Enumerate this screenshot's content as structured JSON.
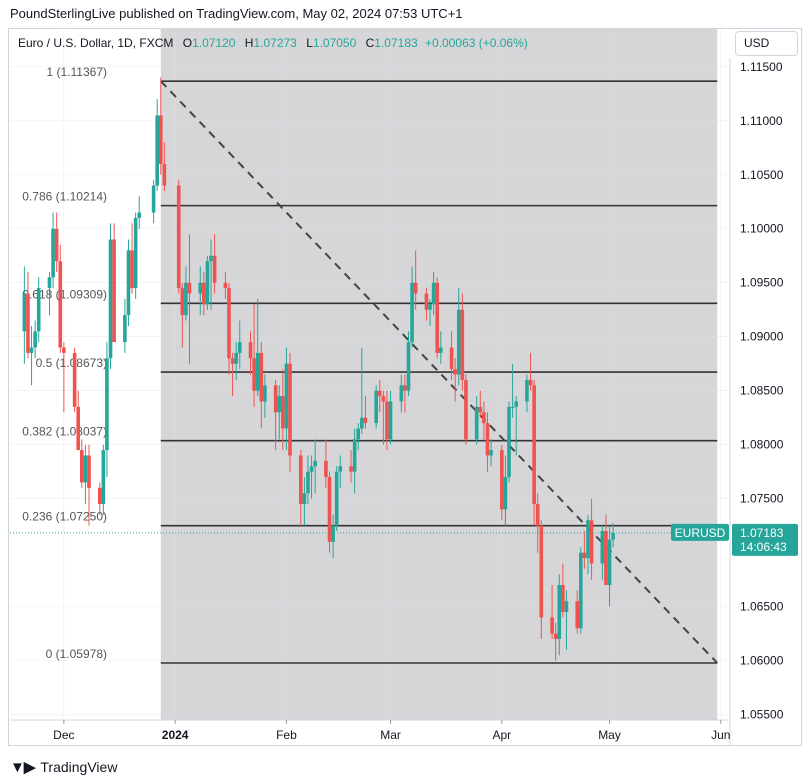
{
  "header": {
    "published_text": "PoundSterlingLive published on TradingView.com, May 02, 2024 07:53 UTC+1"
  },
  "legend": {
    "symbol": "Euro / U.S. Dollar, 1D, FXCM",
    "o_label": "O",
    "o_value": "1.07120",
    "h_label": "H",
    "h_value": "1.07273",
    "l_label": "L",
    "l_value": "1.07050",
    "c_label": "C",
    "c_value": "1.07183",
    "change": "+0.00063 (+0.06%)"
  },
  "currency_selector": "USD",
  "price_tag": {
    "symbol": "EURUSD",
    "price": "1.07183",
    "countdown": "14:06:43"
  },
  "footer": {
    "brand": "TradingView"
  },
  "colors": {
    "up": "#26a69a",
    "down": "#ef5350",
    "shade": "#d6d6d8",
    "level_line": "#333333",
    "trend_line": "#444444"
  },
  "chart_data": {
    "type": "candlestick",
    "y_axis": {
      "min": 1.0545,
      "max": 1.1185,
      "ticks": [
        "1.11500",
        "1.11000",
        "1.10500",
        "1.10000",
        "1.09500",
        "1.09000",
        "1.08500",
        "1.08000",
        "1.07500",
        "1.06500",
        "1.06000",
        "1.05500"
      ]
    },
    "x_axis": {
      "labels": [
        {
          "text": "Dec",
          "date": "2023-12-01",
          "bold": false
        },
        {
          "text": "2024",
          "date": "2024-01-01",
          "bold": true
        },
        {
          "text": "Feb",
          "date": "2024-02-01",
          "bold": false
        },
        {
          "text": "Mar",
          "date": "2024-03-01",
          "bold": false
        },
        {
          "text": "Apr",
          "date": "2024-04-01",
          "bold": false
        },
        {
          "text": "May",
          "date": "2024-05-01",
          "bold": false
        },
        {
          "text": "Jun",
          "date": "2024-06-01",
          "bold": false
        }
      ]
    },
    "fib_levels": [
      {
        "label": "1 (1.11367)",
        "value": 1.11367
      },
      {
        "label": "0.786 (1.10214)",
        "value": 1.10214
      },
      {
        "label": "0.618 (1.09309)",
        "value": 1.09309
      },
      {
        "label": "0.5 (1.08673)",
        "value": 1.08673
      },
      {
        "label": "0.382 (1.08037)",
        "value": 1.08037
      },
      {
        "label": "0.236 (1.07250)",
        "value": 1.0725
      },
      {
        "label": "0 (1.05978)",
        "value": 1.05978
      }
    ],
    "fib_range": {
      "start": "2023-12-28",
      "end": "2024-05-31"
    },
    "trend_line": {
      "start": {
        "date": "2023-12-28",
        "value": 1.11367
      },
      "end": {
        "date": "2024-05-31",
        "value": 1.05978
      }
    },
    "last_price": 1.07183,
    "candles": [
      [
        "2023-11-20",
        1.0905,
        1.0965,
        1.0875,
        1.094
      ],
      [
        "2023-11-21",
        1.094,
        1.096,
        1.088,
        1.0885
      ],
      [
        "2023-11-22",
        1.0885,
        1.091,
        1.0855,
        1.089
      ],
      [
        "2023-11-23",
        1.089,
        1.0915,
        1.088,
        1.0905
      ],
      [
        "2023-11-24",
        1.0905,
        1.0955,
        1.0895,
        1.0945
      ],
      [
        "2023-11-27",
        1.0945,
        1.096,
        1.092,
        1.0955
      ],
      [
        "2023-11-28",
        1.0955,
        1.1015,
        1.0945,
        1.1
      ],
      [
        "2023-11-29",
        1.1,
        1.1015,
        1.096,
        1.097
      ],
      [
        "2023-11-30",
        1.097,
        1.0985,
        1.0885,
        1.089
      ],
      [
        "2023-12-01",
        1.089,
        1.0895,
        1.083,
        1.0885
      ],
      [
        "2023-12-04",
        1.0885,
        1.089,
        1.083,
        1.0835
      ],
      [
        "2023-12-05",
        1.0835,
        1.085,
        1.0795,
        1.0795
      ],
      [
        "2023-12-06",
        1.0795,
        1.0805,
        1.076,
        1.0765
      ],
      [
        "2023-12-07",
        1.0765,
        1.08,
        1.0745,
        1.079
      ],
      [
        "2023-12-08",
        1.079,
        1.08,
        1.0725,
        1.076
      ],
      [
        "2023-12-11",
        1.076,
        1.0765,
        1.0735,
        1.0745
      ],
      [
        "2023-12-12",
        1.0745,
        1.08,
        1.0735,
        1.0795
      ],
      [
        "2023-12-13",
        1.0795,
        1.0895,
        1.077,
        1.088
      ],
      [
        "2023-12-14",
        1.088,
        1.1005,
        1.087,
        1.099
      ],
      [
        "2023-12-15",
        1.099,
        1.1005,
        1.0895,
        1.0895
      ],
      [
        "2023-12-18",
        1.0895,
        1.0935,
        1.0885,
        1.092
      ],
      [
        "2023-12-19",
        1.092,
        1.099,
        1.091,
        1.098
      ],
      [
        "2023-12-20",
        1.098,
        1.1005,
        1.094,
        1.0945
      ],
      [
        "2023-12-21",
        1.0945,
        1.1015,
        1.0935,
        1.101
      ],
      [
        "2023-12-22",
        1.101,
        1.103,
        1.1,
        1.1015
      ],
      [
        "2023-12-26",
        1.1015,
        1.1045,
        1.1005,
        1.104
      ],
      [
        "2023-12-27",
        1.104,
        1.112,
        1.1035,
        1.1105
      ],
      [
        "2023-12-28",
        1.1105,
        1.114,
        1.105,
        1.106
      ],
      [
        "2023-12-29",
        1.106,
        1.108,
        1.1035,
        1.104
      ],
      [
        "2024-01-02",
        1.104,
        1.1045,
        1.094,
        1.0945
      ],
      [
        "2024-01-03",
        1.0945,
        1.095,
        1.089,
        1.092
      ],
      [
        "2024-01-04",
        1.092,
        1.0965,
        1.0915,
        1.095
      ],
      [
        "2024-01-05",
        1.095,
        1.0995,
        1.0875,
        1.094
      ],
      [
        "2024-01-08",
        1.094,
        1.0965,
        1.092,
        1.095
      ],
      [
        "2024-01-09",
        1.095,
        1.096,
        1.092,
        1.093
      ],
      [
        "2024-01-10",
        1.093,
        1.0975,
        1.0925,
        1.097
      ],
      [
        "2024-01-11",
        1.097,
        1.099,
        1.0925,
        1.0975
      ],
      [
        "2024-01-12",
        1.0975,
        1.0995,
        1.094,
        1.095
      ],
      [
        "2024-01-15",
        1.095,
        1.096,
        1.0935,
        1.0945
      ],
      [
        "2024-01-16",
        1.0945,
        1.095,
        1.0865,
        1.088
      ],
      [
        "2024-01-17",
        1.088,
        1.0885,
        1.0845,
        1.0875
      ],
      [
        "2024-01-18",
        1.0875,
        1.0895,
        1.086,
        1.0885
      ],
      [
        "2024-01-19",
        1.0885,
        1.0915,
        1.087,
        1.0895
      ],
      [
        "2024-01-22",
        1.0895,
        1.0905,
        1.0865,
        1.088
      ],
      [
        "2024-01-23",
        1.088,
        1.093,
        1.0835,
        1.085
      ],
      [
        "2024-01-24",
        1.085,
        1.0935,
        1.0845,
        1.0885
      ],
      [
        "2024-01-25",
        1.0885,
        1.0895,
        1.0815,
        1.084
      ],
      [
        "2024-01-26",
        1.084,
        1.0865,
        1.0825,
        1.0855
      ],
      [
        "2024-01-29",
        1.0855,
        1.086,
        1.0795,
        1.083
      ],
      [
        "2024-01-30",
        1.083,
        1.0855,
        1.0805,
        1.0845
      ],
      [
        "2024-01-31",
        1.0845,
        1.087,
        1.0795,
        1.0815
      ],
      [
        "2024-02-01",
        1.0815,
        1.089,
        1.0795,
        1.0875
      ],
      [
        "2024-02-02",
        1.0875,
        1.0885,
        1.0775,
        1.079
      ],
      [
        "2024-02-05",
        1.079,
        1.0795,
        1.0725,
        1.0745
      ],
      [
        "2024-02-06",
        1.0745,
        1.077,
        1.0725,
        1.0755
      ],
      [
        "2024-02-07",
        1.0755,
        1.079,
        1.0745,
        1.0775
      ],
      [
        "2024-02-08",
        1.0775,
        1.079,
        1.075,
        1.078
      ],
      [
        "2024-02-09",
        1.078,
        1.0805,
        1.0755,
        1.0785
      ],
      [
        "2024-02-12",
        1.0785,
        1.0805,
        1.076,
        1.077
      ],
      [
        "2024-02-13",
        1.077,
        1.0775,
        1.07,
        1.071
      ],
      [
        "2024-02-14",
        1.071,
        1.0735,
        1.0695,
        1.0725
      ],
      [
        "2024-02-15",
        1.0725,
        1.078,
        1.072,
        1.0775
      ],
      [
        "2024-02-16",
        1.0775,
        1.079,
        1.076,
        1.078
      ],
      [
        "2024-02-19",
        1.078,
        1.0795,
        1.0765,
        1.0775
      ],
      [
        "2024-02-20",
        1.0775,
        1.0815,
        1.0755,
        1.0805
      ],
      [
        "2024-02-21",
        1.0805,
        1.082,
        1.0795,
        1.0815
      ],
      [
        "2024-02-22",
        1.0815,
        1.089,
        1.081,
        1.0825
      ],
      [
        "2024-02-23",
        1.0825,
        1.0845,
        1.0815,
        1.082
      ],
      [
        "2024-02-26",
        1.082,
        1.0855,
        1.0815,
        1.085
      ],
      [
        "2024-02-27",
        1.085,
        1.086,
        1.083,
        1.0845
      ],
      [
        "2024-02-28",
        1.0845,
        1.085,
        1.08,
        1.084
      ],
      [
        "2024-02-29",
        1.084,
        1.085,
        1.0795,
        1.0805
      ],
      [
        "2024-03-01",
        1.0805,
        1.085,
        1.08,
        1.084
      ],
      [
        "2024-03-04",
        1.084,
        1.0865,
        1.083,
        1.0855
      ],
      [
        "2024-03-05",
        1.0855,
        1.0865,
        1.083,
        1.085
      ],
      [
        "2024-03-06",
        1.085,
        1.0905,
        1.0845,
        1.0895
      ],
      [
        "2024-03-07",
        1.0895,
        1.0965,
        1.089,
        1.095
      ],
      [
        "2024-03-08",
        1.095,
        1.098,
        1.0925,
        1.094
      ],
      [
        "2024-03-11",
        1.094,
        1.0945,
        1.0915,
        1.0925
      ],
      [
        "2024-03-12",
        1.0925,
        1.0935,
        1.091,
        1.093
      ],
      [
        "2024-03-13",
        1.093,
        1.096,
        1.092,
        1.095
      ],
      [
        "2024-03-14",
        1.095,
        1.0955,
        1.088,
        1.0885
      ],
      [
        "2024-03-15",
        1.0885,
        1.0905,
        1.0875,
        1.089
      ],
      [
        "2024-03-18",
        1.089,
        1.0905,
        1.086,
        1.087
      ],
      [
        "2024-03-19",
        1.087,
        1.088,
        1.084,
        1.0865
      ],
      [
        "2024-03-20",
        1.0865,
        1.0945,
        1.0855,
        1.0925
      ],
      [
        "2024-03-21",
        1.0925,
        1.094,
        1.085,
        1.086
      ],
      [
        "2024-03-22",
        1.086,
        1.0865,
        1.08,
        1.0805
      ],
      [
        "2024-03-25",
        1.0805,
        1.0845,
        1.08,
        1.0835
      ],
      [
        "2024-03-26",
        1.0835,
        1.085,
        1.0825,
        1.083
      ],
      [
        "2024-03-27",
        1.083,
        1.084,
        1.0805,
        1.082
      ],
      [
        "2024-03-28",
        1.082,
        1.083,
        1.0775,
        1.079
      ],
      [
        "2024-03-29",
        1.079,
        1.0805,
        1.078,
        1.0795
      ],
      [
        "2024-04-01",
        1.0795,
        1.08,
        1.073,
        1.074
      ],
      [
        "2024-04-02",
        1.074,
        1.079,
        1.0725,
        1.077
      ],
      [
        "2024-04-03",
        1.077,
        1.084,
        1.0765,
        1.0835
      ],
      [
        "2024-04-04",
        1.0835,
        1.0875,
        1.0825,
        1.0835
      ],
      [
        "2024-04-05",
        1.0835,
        1.0845,
        1.079,
        1.084
      ],
      [
        "2024-04-08",
        1.084,
        1.0865,
        1.083,
        1.086
      ],
      [
        "2024-04-09",
        1.086,
        1.0885,
        1.085,
        1.0855
      ],
      [
        "2024-04-10",
        1.0855,
        1.086,
        1.0725,
        1.0745
      ],
      [
        "2024-04-11",
        1.0745,
        1.0755,
        1.07,
        1.0725
      ],
      [
        "2024-04-12",
        1.0725,
        1.073,
        1.062,
        1.064
      ],
      [
        "2024-04-15",
        1.064,
        1.067,
        1.062,
        1.0625
      ],
      [
        "2024-04-16",
        1.0625,
        1.0635,
        1.06,
        1.062
      ],
      [
        "2024-04-17",
        1.062,
        1.068,
        1.0605,
        1.067
      ],
      [
        "2024-04-18",
        1.067,
        1.069,
        1.064,
        1.0645
      ],
      [
        "2024-04-19",
        1.0645,
        1.0665,
        1.061,
        1.0655
      ],
      [
        "2024-04-22",
        1.0655,
        1.0665,
        1.0625,
        1.063
      ],
      [
        "2024-04-23",
        1.063,
        1.0705,
        1.0625,
        1.07
      ],
      [
        "2024-04-24",
        1.07,
        1.072,
        1.0685,
        1.0695
      ],
      [
        "2024-04-25",
        1.0695,
        1.0735,
        1.068,
        1.073
      ],
      [
        "2024-04-26",
        1.073,
        1.075,
        1.0675,
        1.069
      ],
      [
        "2024-04-29",
        1.069,
        1.0725,
        1.0675,
        1.072
      ],
      [
        "2024-04-30",
        1.072,
        1.0735,
        1.067,
        1.067
      ],
      [
        "2024-05-01",
        1.067,
        1.0725,
        1.065,
        1.0712
      ],
      [
        "2024-05-02",
        1.0712,
        1.07273,
        1.0705,
        1.07183
      ]
    ]
  }
}
